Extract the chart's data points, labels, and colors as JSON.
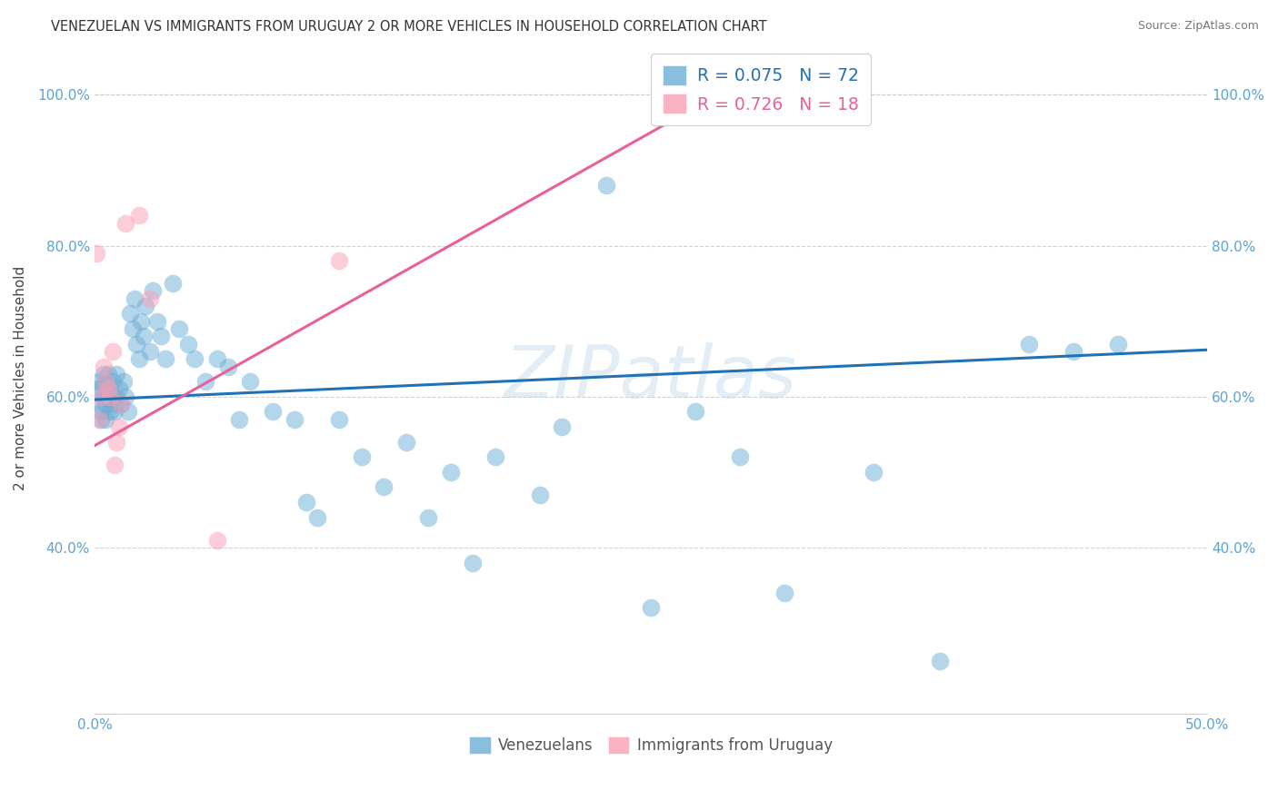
{
  "title": "VENEZUELAN VS IMMIGRANTS FROM URUGUAY 2 OR MORE VEHICLES IN HOUSEHOLD CORRELATION CHART",
  "source": "Source: ZipAtlas.com",
  "ylabel": "2 or more Vehicles in Household",
  "xmin": 0.0,
  "xmax": 0.5,
  "ymin": 0.18,
  "ymax": 1.07,
  "xticks": [
    0.0,
    0.1,
    0.2,
    0.3,
    0.4,
    0.5
  ],
  "xtick_labels_bottom": [
    "0.0%",
    "",
    "",
    "",
    "",
    "50.0%"
  ],
  "yticks": [
    0.4,
    0.6,
    0.8,
    1.0
  ],
  "ytick_labels": [
    "40.0%",
    "60.0%",
    "80.0%",
    "100.0%"
  ],
  "watermark": "ZIPatlas",
  "legend_blue_label": "Venezuelans",
  "legend_pink_label": "Immigrants from Uruguay",
  "blue_R": "R = 0.075",
  "blue_N": "N = 72",
  "pink_R": "R = 0.726",
  "pink_N": "N = 18",
  "blue_color": "#6baed6",
  "pink_color": "#fa9fb5",
  "blue_line_color": "#2171b5",
  "pink_line_color": "#e8609a",
  "title_color": "#333333",
  "axis_label_color": "#5ba3d0",
  "grid_color": "#cccccc",
  "venezuelan_x": [
    0.001,
    0.002,
    0.002,
    0.003,
    0.003,
    0.003,
    0.004,
    0.004,
    0.005,
    0.005,
    0.005,
    0.006,
    0.006,
    0.007,
    0.007,
    0.008,
    0.008,
    0.009,
    0.009,
    0.01,
    0.01,
    0.011,
    0.012,
    0.013,
    0.014,
    0.015,
    0.016,
    0.017,
    0.018,
    0.019,
    0.02,
    0.021,
    0.022,
    0.023,
    0.025,
    0.026,
    0.028,
    0.03,
    0.032,
    0.035,
    0.038,
    0.042,
    0.045,
    0.05,
    0.055,
    0.06,
    0.065,
    0.07,
    0.08,
    0.09,
    0.095,
    0.1,
    0.11,
    0.12,
    0.13,
    0.14,
    0.15,
    0.16,
    0.17,
    0.18,
    0.2,
    0.21,
    0.23,
    0.25,
    0.27,
    0.29,
    0.31,
    0.35,
    0.38,
    0.42,
    0.44,
    0.46
  ],
  "venezuelan_y": [
    0.61,
    0.59,
    0.62,
    0.58,
    0.61,
    0.57,
    0.6,
    0.63,
    0.59,
    0.62,
    0.57,
    0.6,
    0.63,
    0.58,
    0.61,
    0.6,
    0.62,
    0.59,
    0.58,
    0.6,
    0.63,
    0.61,
    0.59,
    0.62,
    0.6,
    0.58,
    0.71,
    0.69,
    0.73,
    0.67,
    0.65,
    0.7,
    0.68,
    0.72,
    0.66,
    0.74,
    0.7,
    0.68,
    0.65,
    0.75,
    0.69,
    0.67,
    0.65,
    0.62,
    0.65,
    0.64,
    0.57,
    0.62,
    0.58,
    0.57,
    0.46,
    0.44,
    0.57,
    0.52,
    0.48,
    0.54,
    0.44,
    0.5,
    0.38,
    0.52,
    0.47,
    0.56,
    0.88,
    0.32,
    0.58,
    0.52,
    0.34,
    0.5,
    0.25,
    0.67,
    0.66,
    0.67
  ],
  "uruguay_x": [
    0.001,
    0.002,
    0.003,
    0.004,
    0.005,
    0.006,
    0.007,
    0.008,
    0.009,
    0.01,
    0.011,
    0.012,
    0.014,
    0.02,
    0.025,
    0.055,
    0.11,
    0.28
  ],
  "uruguay_y": [
    0.79,
    0.57,
    0.6,
    0.64,
    0.62,
    0.61,
    0.6,
    0.66,
    0.51,
    0.54,
    0.56,
    0.59,
    0.83,
    0.84,
    0.73,
    0.41,
    0.78,
    1.0
  ],
  "blue_trendline_x": [
    0.0,
    0.5
  ],
  "blue_trendline_y": [
    0.596,
    0.662
  ],
  "pink_trendline_x": [
    0.0,
    0.28
  ],
  "pink_trendline_y": [
    0.535,
    1.0
  ]
}
